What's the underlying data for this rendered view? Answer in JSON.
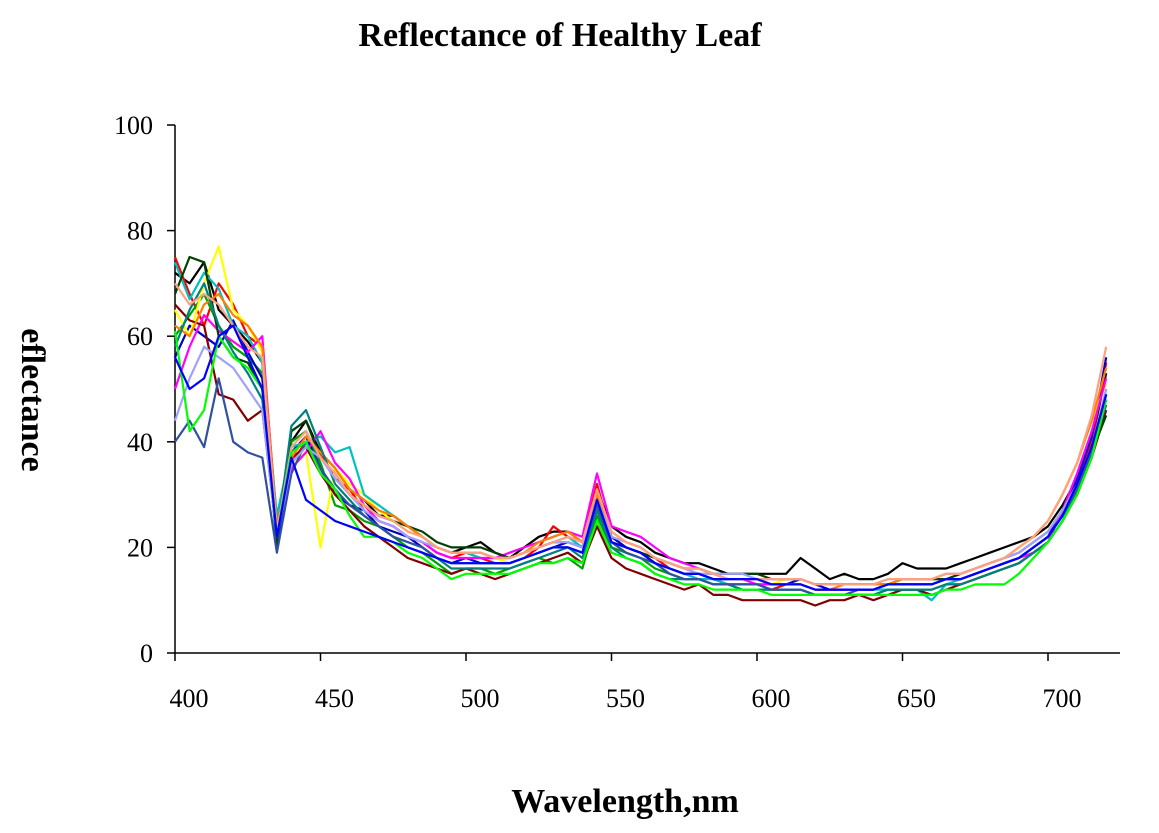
{
  "chart_data": {
    "type": "line",
    "title": "Reflectance of Healthy Leaf",
    "xlabel": "Wavelength,nm",
    "ylabel": "eflectance",
    "xlim": [
      400,
      720
    ],
    "ylim": [
      0,
      100
    ],
    "x_ticks": [
      400,
      450,
      500,
      550,
      600,
      650,
      700
    ],
    "y_ticks": [
      0,
      20,
      40,
      60,
      80,
      100
    ],
    "x_tick_labels": [
      "400",
      "450",
      "500",
      "550",
      "600",
      "650",
      "700"
    ],
    "y_tick_labels": [
      "0",
      "20",
      "40",
      "60",
      "80",
      "100"
    ],
    "grid": false,
    "legend": "none",
    "x": [
      400,
      405,
      410,
      415,
      420,
      425,
      430,
      435,
      440,
      445,
      450,
      455,
      460,
      465,
      470,
      475,
      480,
      485,
      490,
      495,
      500,
      505,
      510,
      515,
      520,
      525,
      530,
      535,
      540,
      545,
      550,
      555,
      560,
      565,
      570,
      575,
      580,
      585,
      590,
      595,
      600,
      605,
      610,
      615,
      620,
      625,
      630,
      635,
      640,
      645,
      650,
      655,
      660,
      665,
      670,
      675,
      680,
      685,
      690,
      695,
      700,
      705,
      710,
      715,
      720
    ],
    "base_curve": [
      63,
      66,
      65,
      66,
      60,
      58,
      55,
      24,
      38,
      42,
      36,
      32,
      30,
      28,
      25,
      24,
      23,
      21,
      19,
      18,
      18,
      18,
      17,
      17,
      18,
      19,
      20,
      21,
      20,
      29,
      22,
      20,
      19,
      17,
      16,
      15,
      15,
      14,
      14,
      13,
      13,
      13,
      13,
      13,
      12,
      12,
      12,
      12,
      12,
      13,
      13,
      13,
      13,
      14,
      14,
      15,
      16,
      17,
      18,
      20,
      22,
      26,
      31,
      38,
      52
    ],
    "series": [
      {
        "color": "#000000",
        "values": [
          72,
          70,
          74,
          65,
          62,
          59,
          55,
          22,
          40,
          44,
          38,
          35,
          31,
          29,
          26,
          26,
          24,
          22,
          20,
          19,
          20,
          21,
          19,
          18,
          20,
          22,
          23,
          23,
          21,
          31,
          24,
          22,
          21,
          19,
          18,
          17,
          17,
          16,
          15,
          15,
          15,
          15,
          15,
          18,
          16,
          14,
          15,
          14,
          14,
          15,
          17,
          16,
          16,
          16,
          17,
          18,
          19,
          20,
          21,
          22,
          24,
          28,
          33,
          40,
          53
        ]
      },
      {
        "color": "#ff0000",
        "values": [
          75,
          68,
          62,
          70,
          66,
          60,
          58,
          25,
          36,
          40,
          38,
          33,
          31,
          27,
          25,
          24,
          22,
          21,
          19,
          18,
          19,
          18,
          17,
          17,
          18,
          20,
          24,
          22,
          21,
          32,
          22,
          20,
          19,
          18,
          16,
          15,
          15,
          14,
          13,
          13,
          13,
          12,
          13,
          13,
          12,
          12,
          12,
          12,
          12,
          13,
          13,
          13,
          13,
          14,
          14,
          15,
          16,
          17,
          18,
          20,
          22,
          27,
          32,
          40,
          55
        ]
      },
      {
        "color": "#00a000",
        "values": [
          60,
          64,
          68,
          62,
          58,
          56,
          53,
          21,
          40,
          42,
          36,
          28,
          27,
          25,
          24,
          22,
          20,
          19,
          17,
          15,
          16,
          16,
          15,
          16,
          17,
          18,
          17,
          18,
          16,
          26,
          20,
          19,
          18,
          16,
          15,
          14,
          14,
          13,
          13,
          12,
          12,
          12,
          12,
          12,
          11,
          11,
          11,
          11,
          11,
          12,
          12,
          12,
          12,
          13,
          13,
          14,
          15,
          16,
          17,
          19,
          21,
          25,
          30,
          37,
          49
        ]
      },
      {
        "color": "#0000c0",
        "values": [
          56,
          62,
          60,
          58,
          63,
          57,
          52,
          20,
          38,
          41,
          35,
          30,
          28,
          27,
          24,
          23,
          22,
          20,
          18,
          17,
          18,
          17,
          17,
          17,
          18,
          19,
          20,
          21,
          20,
          30,
          22,
          20,
          19,
          17,
          16,
          15,
          15,
          14,
          14,
          14,
          14,
          13,
          13,
          14,
          13,
          12,
          12,
          12,
          12,
          13,
          13,
          13,
          13,
          14,
          14,
          15,
          16,
          17,
          18,
          20,
          22,
          27,
          33,
          41,
          56
        ]
      },
      {
        "color": "#ffff00",
        "values": [
          65,
          60,
          70,
          77,
          65,
          62,
          57,
          24,
          36,
          38,
          20,
          35,
          32,
          30,
          27,
          25,
          23,
          22,
          20,
          19,
          19,
          19,
          18,
          17,
          18,
          19,
          20,
          20,
          19,
          28,
          23,
          21,
          20,
          18,
          17,
          16,
          16,
          15,
          14,
          14,
          14,
          13,
          14,
          14,
          13,
          13,
          13,
          13,
          13,
          13,
          14,
          14,
          14,
          14,
          15,
          16,
          17,
          18,
          20,
          22,
          25,
          30,
          36,
          44,
          51
        ]
      },
      {
        "color": "#00c0c0",
        "values": [
          74,
          67,
          72,
          69,
          62,
          60,
          55,
          26,
          39,
          40,
          41,
          38,
          39,
          30,
          28,
          26,
          24,
          22,
          20,
          19,
          19,
          18,
          18,
          18,
          19,
          20,
          21,
          22,
          20,
          28,
          21,
          19,
          18,
          17,
          16,
          15,
          14,
          14,
          13,
          13,
          13,
          13,
          13,
          13,
          12,
          12,
          12,
          12,
          12,
          12,
          12,
          12,
          10,
          13,
          14,
          15,
          16,
          17,
          18,
          20,
          22,
          26,
          31,
          38,
          50
        ]
      },
      {
        "color": "#ff00ff",
        "values": [
          50,
          58,
          64,
          61,
          59,
          57,
          60,
          23,
          35,
          38,
          42,
          36,
          33,
          28,
          25,
          24,
          22,
          21,
          19,
          18,
          18,
          18,
          18,
          19,
          20,
          21,
          22,
          23,
          22,
          34,
          24,
          23,
          22,
          20,
          18,
          17,
          16,
          15,
          14,
          14,
          13,
          13,
          13,
          13,
          12,
          12,
          12,
          12,
          12,
          13,
          13,
          13,
          13,
          14,
          14,
          15,
          16,
          17,
          18,
          19,
          21,
          27,
          34,
          42,
          52
        ]
      },
      {
        "color": "#800000",
        "values": [
          66,
          63,
          62,
          49,
          48,
          44,
          46,
          22,
          37,
          39,
          34,
          30,
          27,
          24,
          22,
          20,
          18,
          17,
          16,
          15,
          16,
          15,
          14,
          15,
          16,
          17,
          18,
          19,
          17,
          24,
          18,
          16,
          15,
          14,
          13,
          12,
          13,
          11,
          11,
          10,
          10,
          10,
          10,
          10,
          9,
          10,
          10,
          11,
          10,
          11,
          12,
          12,
          11,
          12,
          13,
          14,
          15,
          16,
          17,
          19,
          21,
          25,
          30,
          37,
          46
        ]
      },
      {
        "color": "#004000",
        "values": [
          68,
          75,
          74,
          60,
          56,
          55,
          50,
          21,
          42,
          44,
          37,
          34,
          30,
          28,
          26,
          25,
          24,
          23,
          21,
          20,
          20,
          20,
          19,
          18,
          19,
          20,
          21,
          21,
          20,
          28,
          21,
          20,
          19,
          18,
          17,
          16,
          16,
          15,
          15,
          15,
          15,
          14,
          14,
          14,
          13,
          13,
          13,
          13,
          13,
          13,
          14,
          14,
          14,
          14,
          15,
          16,
          17,
          18,
          19,
          21,
          23,
          27,
          32,
          38,
          45
        ]
      },
      {
        "color": "#ff8000",
        "values": [
          62,
          60,
          66,
          68,
          64,
          62,
          58,
          24,
          37,
          41,
          38,
          35,
          31,
          29,
          27,
          26,
          24,
          22,
          20,
          19,
          19,
          19,
          18,
          18,
          19,
          21,
          22,
          23,
          21,
          30,
          23,
          21,
          20,
          18,
          17,
          16,
          15,
          15,
          14,
          14,
          14,
          13,
          13,
          13,
          12,
          12,
          13,
          13,
          13,
          13,
          14,
          14,
          14,
          15,
          15,
          16,
          17,
          18,
          20,
          22,
          25,
          30,
          36,
          44,
          54
        ]
      },
      {
        "color": "#008080",
        "values": [
          58,
          65,
          70,
          62,
          57,
          53,
          48,
          22,
          43,
          46,
          39,
          32,
          29,
          26,
          24,
          22,
          21,
          20,
          18,
          16,
          16,
          16,
          16,
          16,
          17,
          18,
          19,
          20,
          18,
          27,
          20,
          18,
          17,
          15,
          14,
          14,
          14,
          13,
          13,
          12,
          12,
          12,
          12,
          12,
          11,
          11,
          11,
          11,
          11,
          12,
          12,
          12,
          12,
          13,
          13,
          14,
          15,
          16,
          17,
          19,
          21,
          25,
          31,
          38,
          48
        ]
      },
      {
        "color": "#3050a0",
        "values": [
          40,
          44,
          39,
          52,
          40,
          38,
          37,
          19,
          34,
          40,
          35,
          31,
          28,
          26,
          24,
          22,
          21,
          20,
          18,
          17,
          17,
          17,
          17,
          17,
          18,
          19,
          20,
          20,
          19,
          28,
          21,
          19,
          18,
          17,
          15,
          14,
          14,
          13,
          13,
          13,
          13,
          12,
          12,
          12,
          11,
          11,
          11,
          12,
          12,
          13,
          13,
          13,
          13,
          14,
          14,
          15,
          16,
          17,
          18,
          20,
          22,
          26,
          31,
          38,
          47
        ]
      },
      {
        "color": "#a0a0ff",
        "values": [
          44,
          52,
          58,
          56,
          54,
          50,
          46,
          22,
          36,
          39,
          37,
          33,
          30,
          27,
          25,
          24,
          22,
          21,
          20,
          19,
          19,
          19,
          18,
          18,
          19,
          20,
          21,
          21,
          20,
          29,
          22,
          21,
          20,
          18,
          17,
          16,
          15,
          15,
          15,
          15,
          14,
          14,
          14,
          14,
          13,
          13,
          13,
          13,
          13,
          14,
          14,
          14,
          14,
          15,
          15,
          16,
          17,
          18,
          19,
          21,
          23,
          27,
          32,
          39,
          50
        ]
      },
      {
        "color": "#ffa080",
        "values": [
          70,
          66,
          68,
          66,
          62,
          58,
          56,
          23,
          39,
          42,
          37,
          34,
          30,
          28,
          26,
          25,
          23,
          22,
          20,
          19,
          19,
          19,
          18,
          18,
          19,
          20,
          21,
          22,
          21,
          31,
          23,
          21,
          20,
          18,
          17,
          16,
          16,
          15,
          14,
          14,
          14,
          14,
          14,
          14,
          13,
          13,
          13,
          13,
          13,
          14,
          14,
          14,
          14,
          15,
          15,
          16,
          17,
          18,
          20,
          22,
          25,
          30,
          36,
          45,
          58
        ]
      },
      {
        "color": "#00ff00",
        "values": [
          61,
          42,
          46,
          60,
          56,
          54,
          50,
          22,
          38,
          40,
          34,
          31,
          26,
          22,
          22,
          21,
          19,
          18,
          16,
          14,
          15,
          15,
          15,
          15,
          16,
          17,
          17,
          18,
          17,
          25,
          19,
          18,
          17,
          15,
          14,
          13,
          13,
          12,
          12,
          12,
          12,
          11,
          11,
          11,
          11,
          11,
          11,
          11,
          11,
          11,
          11,
          11,
          11,
          12,
          12,
          13,
          13,
          13,
          15,
          18,
          21,
          25,
          30,
          37,
          48
        ]
      },
      {
        "color": "#0000ff",
        "values": [
          56,
          50,
          52,
          60,
          62,
          56,
          50,
          22,
          37,
          29,
          27,
          25,
          24,
          23,
          22,
          21,
          20,
          19,
          18,
          17,
          17,
          17,
          17,
          17,
          18,
          19,
          20,
          20,
          19,
          29,
          21,
          20,
          19,
          17,
          16,
          15,
          15,
          14,
          14,
          14,
          14,
          13,
          13,
          13,
          12,
          12,
          12,
          12,
          12,
          13,
          13,
          13,
          13,
          14,
          14,
          15,
          16,
          17,
          18,
          20,
          22,
          26,
          32,
          39,
          49
        ]
      }
    ]
  }
}
